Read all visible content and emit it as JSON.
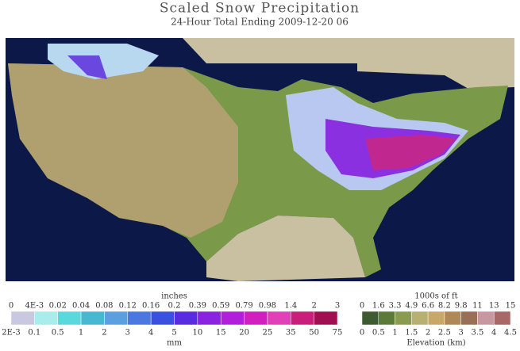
{
  "header": {
    "title": "Scaled Snow Precipitation",
    "subtitle": "24-Hour Total Ending 2009-12-20 06"
  },
  "snow_legend": {
    "top_unit": "inches",
    "bottom_unit": "mm",
    "inches": [
      "0",
      "4E-3",
      "0.02",
      "0.04",
      "0.08",
      "0.12",
      "0.16",
      "0.2",
      "0.39",
      "0.59",
      "0.79",
      "0.98",
      "1.4",
      "2",
      "3"
    ],
    "mm": [
      "2E-3",
      "0.1",
      "0.5",
      "1",
      "2",
      "3",
      "4",
      "5",
      "10",
      "15",
      "20",
      "25",
      "35",
      "50",
      "75"
    ],
    "colors": [
      "#c8c8e0",
      "#a8ecec",
      "#5ad8dc",
      "#48b8d0",
      "#5aa0e0",
      "#4a78e0",
      "#3c50e0",
      "#5a2ce0",
      "#8a22e0",
      "#b020d8",
      "#d020c0",
      "#e040b8",
      "#c8207a",
      "#a01050"
    ]
  },
  "elevation_legend": {
    "top_unit": "1000s of ft",
    "bottom_unit": "Elevation (km)",
    "ft": [
      "0",
      "1.6",
      "3.3",
      "4.9",
      "6.6",
      "8.2",
      "9.8",
      "11",
      "13",
      "15"
    ],
    "km": [
      "0",
      "0.5",
      "1",
      "1.5",
      "2",
      "2.5",
      "3",
      "3.5",
      "4",
      "4.5"
    ],
    "colors": [
      "#3e5a30",
      "#5c7a3a",
      "#8a9a50",
      "#b8b070",
      "#c8a868",
      "#b08858",
      "#987058",
      "#c898a0",
      "#a86868"
    ]
  }
}
